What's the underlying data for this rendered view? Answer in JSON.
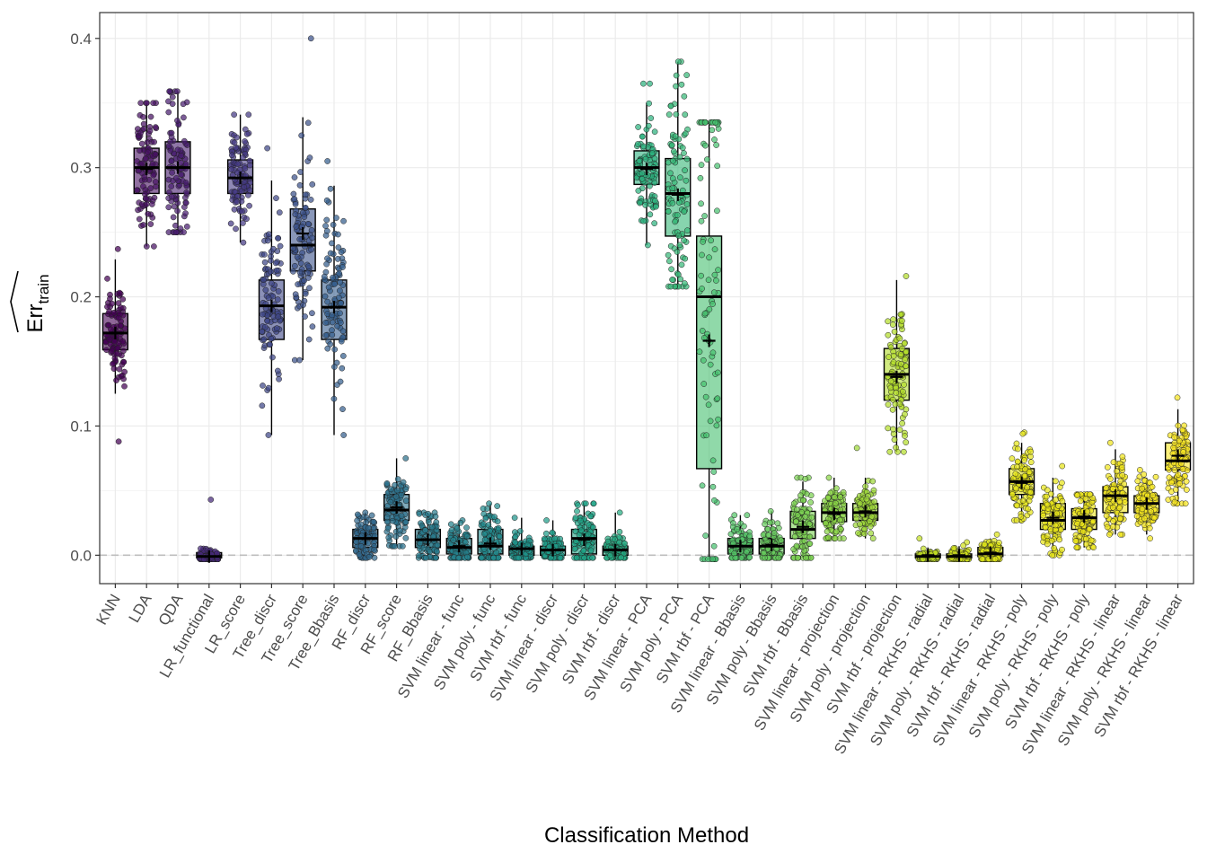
{
  "chart_data": {
    "type": "boxplot",
    "xlabel": "Classification Method",
    "ylabel_main": "Err",
    "ylabel_sub": "train",
    "ylim": [
      -0.022,
      0.42
    ],
    "yticks": [
      0.0,
      0.1,
      0.2,
      0.3,
      0.4
    ],
    "ytick_labels": [
      "0.0",
      "0.1",
      "0.2",
      "0.3",
      "0.4"
    ],
    "grid": true,
    "reference_line": 0.0,
    "categories": [
      {
        "label": "KNN",
        "q1": 0.159,
        "median": 0.172,
        "q3": 0.187,
        "wlo": 0.125,
        "whi": 0.229,
        "mean": 0.172,
        "pmin": 0.088,
        "pmax": 0.237,
        "color": "#440154"
      },
      {
        "label": "LDA",
        "q1": 0.28,
        "median": 0.3,
        "q3": 0.315,
        "wlo": 0.239,
        "whi": 0.35,
        "mean": 0.299,
        "pmin": 0.239,
        "pmax": 0.35,
        "color": "#471063"
      },
      {
        "label": "QDA",
        "q1": 0.28,
        "median": 0.3,
        "q3": 0.32,
        "wlo": 0.25,
        "whi": 0.359,
        "mean": 0.3,
        "pmin": 0.25,
        "pmax": 0.359,
        "color": "#481d6f"
      },
      {
        "label": "LR_functional",
        "q1": -0.002,
        "median": -0.001,
        "q3": 0.002,
        "wlo": -0.003,
        "whi": 0.004,
        "mean": -0.001,
        "pmin": -0.003,
        "pmax": 0.043,
        "color": "#47297b"
      },
      {
        "label": "LR_score",
        "q1": 0.28,
        "median": 0.292,
        "q3": 0.306,
        "wlo": 0.242,
        "whi": 0.341,
        "mean": 0.292,
        "pmin": 0.242,
        "pmax": 0.341,
        "color": "#443983"
      },
      {
        "label": "Tree_discr",
        "q1": 0.167,
        "median": 0.193,
        "q3": 0.213,
        "wlo": 0.093,
        "whi": 0.29,
        "mean": 0.193,
        "pmin": 0.093,
        "pmax": 0.315,
        "color": "#3f4788"
      },
      {
        "label": "Tree_score",
        "q1": 0.22,
        "median": 0.24,
        "q3": 0.268,
        "wlo": 0.151,
        "whi": 0.339,
        "mean": 0.249,
        "pmin": 0.151,
        "pmax": 0.4,
        "color": "#3b528b"
      },
      {
        "label": "Tree_Bbasis",
        "q1": 0.167,
        "median": 0.192,
        "q3": 0.213,
        "wlo": 0.093,
        "whi": 0.286,
        "mean": 0.192,
        "pmin": 0.093,
        "pmax": 0.305,
        "color": "#355e8d"
      },
      {
        "label": "RF_discr",
        "q1": 0.006,
        "median": 0.013,
        "q3": 0.02,
        "wlo": -0.002,
        "whi": 0.033,
        "mean": 0.013,
        "pmin": -0.002,
        "pmax": 0.033,
        "color": "#31688e"
      },
      {
        "label": "RF_score",
        "q1": 0.027,
        "median": 0.035,
        "q3": 0.047,
        "wlo": 0.007,
        "whi": 0.075,
        "mean": 0.037,
        "pmin": 0.007,
        "pmax": 0.075,
        "color": "#2c728e"
      },
      {
        "label": "RF_Bbasis",
        "q1": 0.006,
        "median": 0.012,
        "q3": 0.02,
        "wlo": -0.002,
        "whi": 0.033,
        "mean": 0.012,
        "pmin": -0.002,
        "pmax": 0.033,
        "color": "#297b8e"
      },
      {
        "label": "SVM linear - func",
        "q1": 0.001,
        "median": 0.006,
        "q3": 0.013,
        "wlo": -0.002,
        "whi": 0.027,
        "mean": 0.007,
        "pmin": -0.002,
        "pmax": 0.027,
        "color": "#26828e"
      },
      {
        "label": "SVM poly - func",
        "q1": 0.001,
        "median": 0.007,
        "q3": 0.02,
        "wlo": -0.002,
        "whi": 0.04,
        "mean": 0.009,
        "pmin": -0.002,
        "pmax": 0.04,
        "color": "#228b8d"
      },
      {
        "label": "SVM rbf - func",
        "q1": 0.0,
        "median": 0.005,
        "q3": 0.007,
        "wlo": -0.002,
        "whi": 0.029,
        "mean": 0.005,
        "pmin": -0.002,
        "pmax": 0.029,
        "color": "#1f948c"
      },
      {
        "label": "SVM linear - discr",
        "q1": 0.0,
        "median": 0.004,
        "q3": 0.007,
        "wlo": -0.002,
        "whi": 0.027,
        "mean": 0.004,
        "pmin": -0.002,
        "pmax": 0.027,
        "color": "#1e9c89"
      },
      {
        "label": "SVM poly - discr",
        "q1": 0.001,
        "median": 0.013,
        "q3": 0.02,
        "wlo": -0.002,
        "whi": 0.04,
        "mean": 0.012,
        "pmin": -0.002,
        "pmax": 0.04,
        "color": "#20a486"
      },
      {
        "label": "SVM rbf - discr",
        "q1": 0.0,
        "median": 0.004,
        "q3": 0.007,
        "wlo": -0.002,
        "whi": 0.033,
        "mean": 0.004,
        "pmin": -0.002,
        "pmax": 0.033,
        "color": "#25ac82"
      },
      {
        "label": "SVM linear - PCA",
        "q1": 0.287,
        "median": 0.3,
        "q3": 0.313,
        "wlo": 0.24,
        "whi": 0.35,
        "mean": 0.299,
        "pmin": 0.24,
        "pmax": 0.365,
        "color": "#2cb17e"
      },
      {
        "label": "SVM poly - PCA",
        "q1": 0.247,
        "median": 0.28,
        "q3": 0.307,
        "wlo": 0.208,
        "whi": 0.382,
        "mean": 0.279,
        "pmin": 0.208,
        "pmax": 0.382,
        "color": "#37b878"
      },
      {
        "label": "SVM rbf - PCA",
        "q1": 0.067,
        "median": 0.2,
        "q3": 0.247,
        "wlo": -0.003,
        "whi": 0.335,
        "mean": 0.166,
        "pmin": -0.003,
        "pmax": 0.335,
        "color": "#46c06f"
      },
      {
        "label": "SVM linear - Bbasis",
        "q1": 0.001,
        "median": 0.007,
        "q3": 0.013,
        "wlo": -0.002,
        "whi": 0.031,
        "mean": 0.007,
        "pmin": -0.002,
        "pmax": 0.031,
        "color": "#55c568"
      },
      {
        "label": "SVM poly - Bbasis",
        "q1": 0.001,
        "median": 0.007,
        "q3": 0.013,
        "wlo": -0.002,
        "whi": 0.034,
        "mean": 0.008,
        "pmin": -0.002,
        "pmax": 0.034,
        "color": "#66cb5d"
      },
      {
        "label": "SVM rbf - Bbasis",
        "q1": 0.013,
        "median": 0.02,
        "q3": 0.034,
        "wlo": -0.002,
        "whi": 0.057,
        "mean": 0.022,
        "pmin": -0.002,
        "pmax": 0.06,
        "color": "#7ad151"
      },
      {
        "label": "SVM linear - projection",
        "q1": 0.026,
        "median": 0.033,
        "q3": 0.04,
        "wlo": 0.013,
        "whi": 0.06,
        "mean": 0.032,
        "pmin": 0.013,
        "pmax": 0.06,
        "color": "#8bd646"
      },
      {
        "label": "SVM poly - projection",
        "q1": 0.027,
        "median": 0.033,
        "q3": 0.04,
        "wlo": 0.013,
        "whi": 0.06,
        "mean": 0.034,
        "pmin": 0.013,
        "pmax": 0.083,
        "color": "#9fda3a"
      },
      {
        "label": "SVM rbf - projection",
        "q1": 0.12,
        "median": 0.14,
        "q3": 0.16,
        "wlo": 0.08,
        "whi": 0.213,
        "mean": 0.138,
        "pmin": 0.08,
        "pmax": 0.216,
        "color": "#b3dc2b"
      },
      {
        "label": "SVM linear - RKHS - radial",
        "q1": -0.002,
        "median": -0.001,
        "q3": 0.001,
        "wlo": -0.003,
        "whi": 0.006,
        "mean": 0.0,
        "pmin": -0.003,
        "pmax": 0.013,
        "color": "#c2df23"
      },
      {
        "label": "SVM poly - RKHS - radial",
        "q1": -0.002,
        "median": -0.001,
        "q3": 0.001,
        "wlo": -0.003,
        "whi": 0.007,
        "mean": 0.0,
        "pmin": -0.003,
        "pmax": 0.01,
        "color": "#d0e11c"
      },
      {
        "label": "SVM rbf - RKHS - radial",
        "q1": -0.001,
        "median": 0.001,
        "q3": 0.006,
        "wlo": -0.003,
        "whi": 0.013,
        "mean": 0.002,
        "pmin": -0.003,
        "pmax": 0.016,
        "color": "#dde318"
      },
      {
        "label": "SVM linear - RKHS - poly",
        "q1": 0.047,
        "median": 0.057,
        "q3": 0.067,
        "wlo": 0.027,
        "whi": 0.087,
        "mean": 0.056,
        "pmin": 0.027,
        "pmax": 0.095,
        "color": "#e4e419"
      },
      {
        "label": "SVM poly - RKHS - poly",
        "q1": 0.02,
        "median": 0.027,
        "q3": 0.04,
        "wlo": 0.0,
        "whi": 0.06,
        "mean": 0.029,
        "pmin": 0.0,
        "pmax": 0.069,
        "color": "#e8e419"
      },
      {
        "label": "SVM rbf - RKHS - poly",
        "q1": 0.02,
        "median": 0.029,
        "q3": 0.036,
        "wlo": 0.006,
        "whi": 0.047,
        "mean": 0.03,
        "pmin": 0.006,
        "pmax": 0.047,
        "color": "#ece51b"
      },
      {
        "label": "SVM linear - RKHS - linear",
        "q1": 0.033,
        "median": 0.046,
        "q3": 0.053,
        "wlo": 0.016,
        "whi": 0.082,
        "mean": 0.046,
        "pmin": 0.016,
        "pmax": 0.087,
        "color": "#f0e51d"
      },
      {
        "label": "SVM poly - RKHS - linear",
        "q1": 0.033,
        "median": 0.04,
        "q3": 0.046,
        "wlo": 0.016,
        "whi": 0.06,
        "mean": 0.04,
        "pmin": 0.013,
        "pmax": 0.066,
        "color": "#f4e61e"
      },
      {
        "label": "SVM rbf - RKHS - linear",
        "q1": 0.066,
        "median": 0.073,
        "q3": 0.087,
        "wlo": 0.04,
        "whi": 0.113,
        "mean": 0.077,
        "pmin": 0.04,
        "pmax": 0.122,
        "color": "#f8e621"
      }
    ]
  }
}
